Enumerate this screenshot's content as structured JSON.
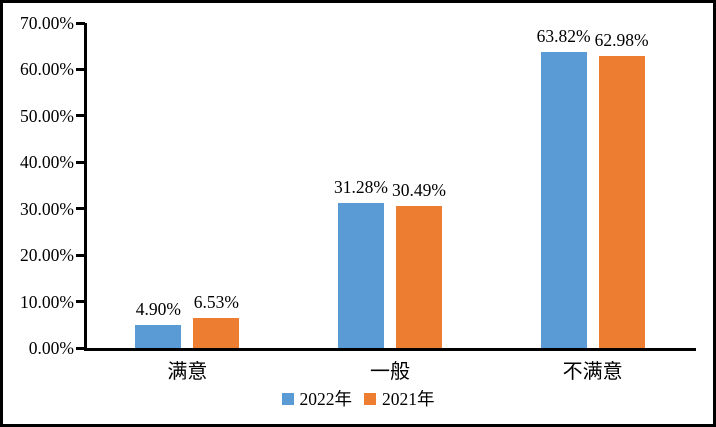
{
  "chart_data": {
    "type": "bar",
    "title": "",
    "xlabel": "",
    "ylabel": "",
    "categories": [
      "满意",
      "一般",
      "不满意"
    ],
    "series": [
      {
        "name": "2022年",
        "color": "#5B9BD5",
        "values": [
          4.9,
          31.28,
          63.82
        ],
        "labels": [
          "4.90%",
          "31.28%",
          "63.82%"
        ]
      },
      {
        "name": "2021年",
        "color": "#ED7D31",
        "values": [
          6.53,
          30.49,
          62.98
        ],
        "labels": [
          "6.53%",
          "30.49%",
          "62.98%"
        ]
      }
    ],
    "ylim": [
      0,
      70
    ],
    "ytick_step": 10,
    "ytick_labels": [
      "0.00%",
      "10.00%",
      "20.00%",
      "30.00%",
      "40.00%",
      "50.00%",
      "60.00%",
      "70.00%"
    ],
    "grid": false,
    "legend_position": "bottom-center",
    "axis_color": "#000000",
    "background_color": "#ffffff",
    "frame_color": "#000000"
  }
}
